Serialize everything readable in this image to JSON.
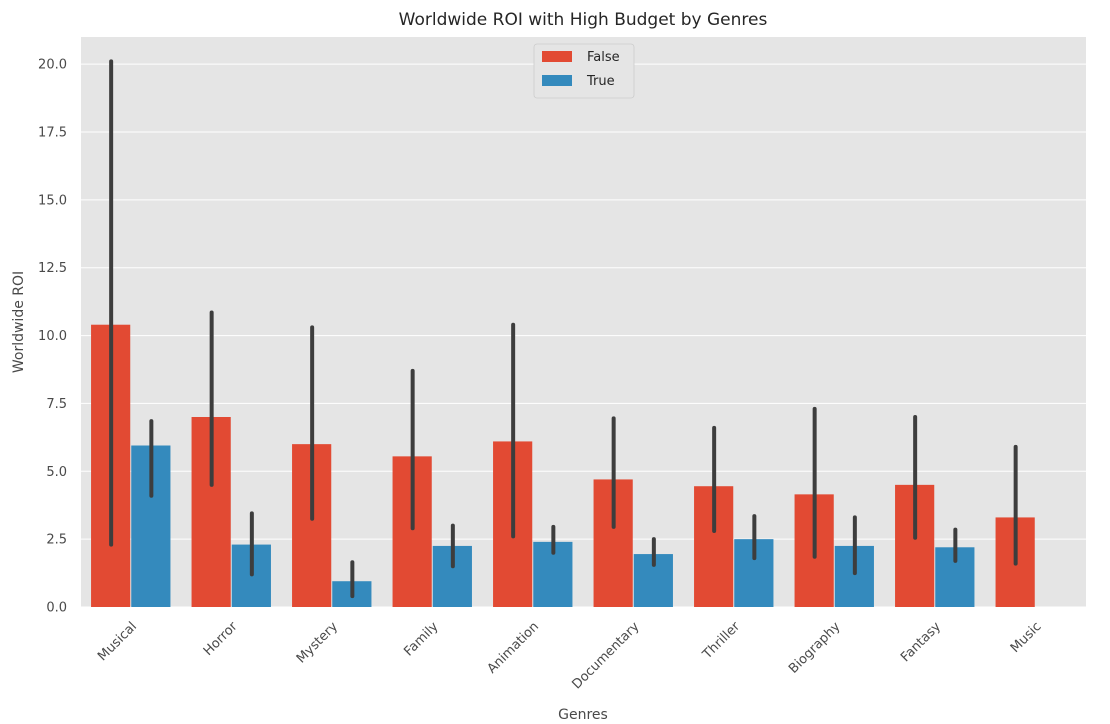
{
  "chart_data": {
    "type": "bar",
    "title": "Worldwide ROI with High Budget by Genres",
    "xlabel": "Genres",
    "ylabel": "Worldwide ROI",
    "ylim": [
      0,
      21
    ],
    "yticks": [
      "0.0",
      "2.5",
      "5.0",
      "7.5",
      "10.0",
      "12.5",
      "15.0",
      "17.5",
      "20.0"
    ],
    "categories": [
      "Musical",
      "Horror",
      "Mystery",
      "Family",
      "Animation",
      "Documentary",
      "Thriller",
      "Biography",
      "Fantasy",
      "Music"
    ],
    "series": [
      {
        "name": "False",
        "color": "#E24A33",
        "values": [
          10.4,
          7.0,
          6.0,
          5.55,
          6.1,
          4.7,
          4.45,
          4.15,
          4.5,
          3.3
        ],
        "ci_low": [
          2.3,
          4.5,
          3.25,
          2.9,
          2.6,
          2.95,
          2.8,
          1.85,
          2.55,
          1.6
        ],
        "ci_high": [
          20.1,
          10.85,
          10.3,
          8.7,
          10.4,
          6.95,
          6.6,
          7.3,
          7.0,
          5.9
        ]
      },
      {
        "name": "True",
        "color": "#348ABD",
        "values": [
          5.95,
          2.3,
          0.95,
          2.25,
          2.4,
          1.95,
          2.5,
          2.25,
          2.2,
          null
        ],
        "ci_low": [
          4.1,
          1.2,
          0.4,
          1.5,
          2.0,
          1.55,
          1.8,
          1.25,
          1.7,
          null
        ],
        "ci_high": [
          6.85,
          3.45,
          1.65,
          3.0,
          2.95,
          2.5,
          3.35,
          3.3,
          2.85,
          null
        ]
      }
    ],
    "grid": true,
    "legend_position": "top-center"
  }
}
